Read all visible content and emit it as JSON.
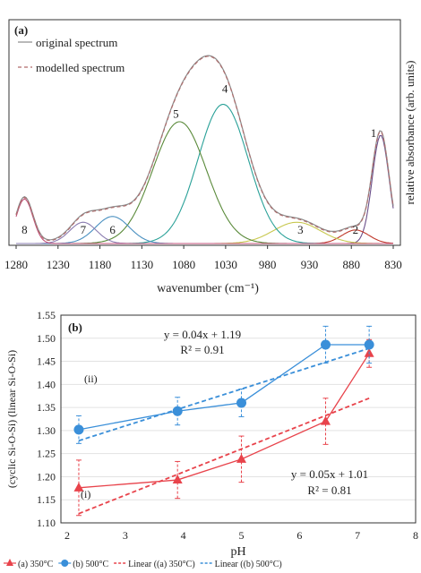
{
  "chart_data": [
    {
      "panel": "(a)",
      "type": "line",
      "xlabel": "wavenumber (cm⁻¹)",
      "ylabel": "relative absorbance (arb. units)",
      "x_reversed": true,
      "xlim": [
        1280,
        830
      ],
      "x_ticks": [
        "1280",
        "1230",
        "1180",
        "1130",
        "1080",
        "1030",
        "980",
        "930",
        "880",
        "830"
      ],
      "legend": {
        "position": "top-left",
        "entries": [
          {
            "label": "original spectrum",
            "style": "solid",
            "color": "#8a8a8a"
          },
          {
            "label": "modelled spectrum",
            "style": "dashed",
            "color": "#b06a6a"
          }
        ]
      },
      "components": [
        {
          "label": "1",
          "center": 845,
          "height": 0.56,
          "width": 10,
          "color": "#6b4f8a"
        },
        {
          "label": "2",
          "center": 875,
          "height": 0.07,
          "width": 16,
          "color": "#c0392b"
        },
        {
          "label": "3",
          "center": 945,
          "height": 0.11,
          "width": 28,
          "color": "#c8c850"
        },
        {
          "label": "4",
          "center": 1033,
          "height": 0.72,
          "width": 30,
          "color": "#2aa198"
        },
        {
          "label": "5",
          "center": 1085,
          "height": 0.63,
          "width": 32,
          "color": "#5a8a3a"
        },
        {
          "label": "6",
          "center": 1165,
          "height": 0.14,
          "width": 20,
          "color": "#4a90c0"
        },
        {
          "label": "7",
          "center": 1200,
          "height": 0.11,
          "width": 16,
          "color": "#8a7cb0"
        },
        {
          "label": "8",
          "center": 1270,
          "height": 0.23,
          "width": 10,
          "color": "#c0507a"
        }
      ]
    },
    {
      "panel": "(b)",
      "type": "scatter",
      "xlabel": "pH",
      "ylabel": "(cyclic Si-O-Si) (linear Si-O-Si)",
      "xlim": [
        2,
        8
      ],
      "ylim": [
        1.1,
        1.55
      ],
      "x_ticks": [
        "2",
        "3",
        "4",
        "5",
        "6",
        "7",
        "8"
      ],
      "y_ticks": [
        "1.10",
        "1.15",
        "1.20",
        "1.25",
        "1.30",
        "1.35",
        "1.40",
        "1.45",
        "1.50",
        "1.55"
      ],
      "series": [
        {
          "name": "(a) 350°C",
          "color": "#e8434b",
          "marker": "triangle",
          "x": [
            2.2,
            3.9,
            5.0,
            6.45,
            7.2
          ],
          "y": [
            1.176,
            1.193,
            1.238,
            1.32,
            1.467
          ],
          "err": [
            0.06,
            0.04,
            0.05,
            0.05,
            0.03
          ]
        },
        {
          "name": "(b) 500°C",
          "color": "#3a8fd9",
          "marker": "circle",
          "x": [
            2.2,
            3.9,
            5.0,
            6.45,
            7.2
          ],
          "y": [
            1.302,
            1.342,
            1.36,
            1.486,
            1.486
          ],
          "err": [
            0.03,
            0.03,
            0.03,
            0.04,
            0.04
          ]
        }
      ],
      "fits": [
        {
          "name": "Linear ((a) 350°C)",
          "color": "#e8434b",
          "slope": 0.05,
          "intercept": 1.01,
          "x_range": [
            2.2,
            7.2
          ],
          "equation": "y = 0.05x + 1.01",
          "r2": "R² = 0.81"
        },
        {
          "name": "Linear ((b) 500°C)",
          "color": "#3a8fd9",
          "slope": 0.04,
          "intercept": 1.19,
          "x_range": [
            2.2,
            7.2
          ],
          "equation": "y = 0.04x + 1.19",
          "r2": "R² = 0.91"
        }
      ],
      "annotations": [
        "(ii)",
        "(i)"
      ],
      "legend": {
        "position": "bottom",
        "entries": [
          {
            "label": "(a) 350°C",
            "color": "#e8434b",
            "marker": "triangle"
          },
          {
            "label": "(b) 500°C",
            "color": "#3a8fd9",
            "marker": "circle"
          },
          {
            "label": "Linear ((a) 350°C)",
            "color": "#e8434b",
            "style": "dashed"
          },
          {
            "label": "Linear ((b) 500°C)",
            "color": "#3a8fd9",
            "style": "dashed"
          }
        ]
      }
    }
  ]
}
